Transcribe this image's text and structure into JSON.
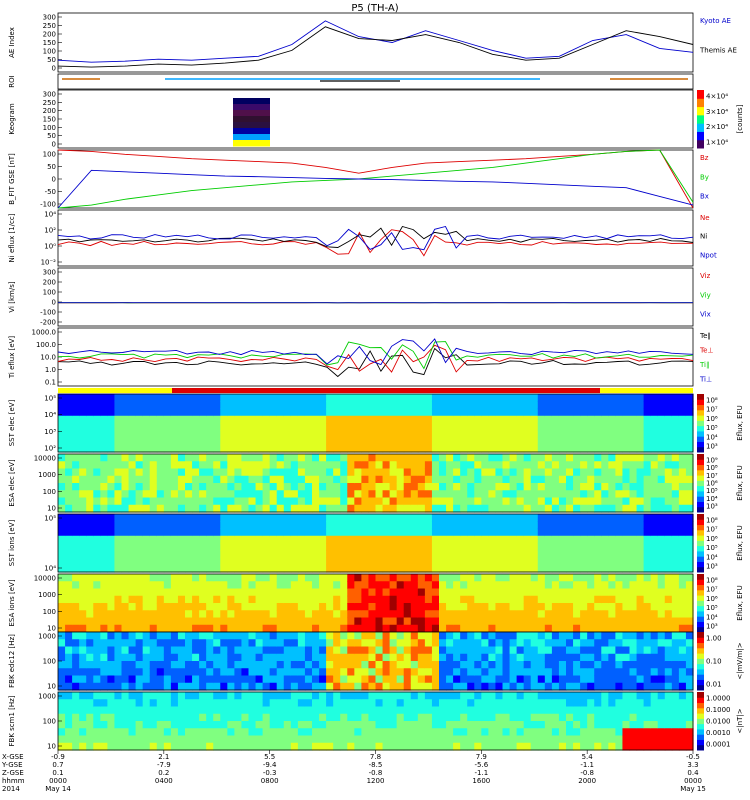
{
  "chart_data": {
    "type": "line",
    "title": "P5 (TH-A)",
    "time_range": [
      "2014 May 14 0000",
      "2014 May 15 0000"
    ],
    "panels": [
      {
        "id": "ae",
        "ylabel": "AE Index",
        "ylim": [
          0,
          300
        ],
        "yticks": [
          "300",
          "250",
          "200",
          "150",
          "100",
          "50",
          "0"
        ],
        "series": [
          {
            "name": "Kyoto AE",
            "color": "#0000cc",
            "values": [
              60,
              50,
              55,
              65,
              60,
              70,
              80,
              140,
              260,
              180,
              150,
              210,
              160,
              110,
              70,
              80,
              160,
              190,
              120,
              100
            ]
          },
          {
            "name": "Themis AE",
            "color": "#000000",
            "values": [
              30,
              25,
              30,
              40,
              35,
              45,
              60,
              110,
              230,
              170,
              160,
              190,
              150,
              90,
              60,
              70,
              140,
              210,
              180,
              140
            ]
          }
        ]
      },
      {
        "id": "roi",
        "ylabel": "ROI",
        "series": []
      },
      {
        "id": "keogram",
        "ylabel": "Keogram",
        "ylim": [
          0,
          300
        ],
        "yticks": [
          "300",
          "250",
          "200",
          "150",
          "100",
          "50",
          "0"
        ],
        "cbar_ticks": [
          "4×10⁴",
          "3×10⁴",
          "2×10⁴",
          "1×10⁴"
        ],
        "cbar_unit": "[counts]"
      },
      {
        "id": "bfit",
        "ylabel": "B_FIT GSE [nT]",
        "ylim": [
          -100,
          100
        ],
        "yticks": [
          "100",
          "50",
          "0",
          "-50",
          "-100"
        ],
        "series": [
          {
            "name": "Bz",
            "color": "#dd0000",
            "values": [
              100,
              95,
              85,
              78,
              70,
              65,
              60,
              55,
              40,
              20,
              40,
              55,
              60,
              65,
              70,
              78,
              85,
              95,
              100,
              -100
            ]
          },
          {
            "name": "By",
            "color": "#00cc00",
            "values": [
              -100,
              -90,
              -70,
              -55,
              -40,
              -30,
              -20,
              -10,
              -5,
              0,
              10,
              20,
              30,
              40,
              55,
              70,
              85,
              95,
              100,
              -80
            ]
          },
          {
            "name": "Bx",
            "color": "#0000cc",
            "values": [
              -100,
              30,
              25,
              20,
              15,
              10,
              8,
              5,
              2,
              0,
              -2,
              -5,
              -8,
              -10,
              -15,
              -20,
              -25,
              -30,
              -60,
              -90
            ]
          }
        ]
      },
      {
        "id": "ni",
        "ylabel": "Ni eflux [1/cc]",
        "ylog": true,
        "yticks": [
          "10⁴",
          "10²",
          "10⁰",
          "10⁻²"
        ],
        "series": [
          {
            "name": "Ne",
            "color": "#dd0000"
          },
          {
            "name": "Ni",
            "color": "#000000"
          },
          {
            "name": "Npot",
            "color": "#0000cc"
          }
        ]
      },
      {
        "id": "vi",
        "ylabel": "Vi [km/s]",
        "ylim": [
          -200,
          300
        ],
        "yticks": [
          "300",
          "200",
          "100",
          "0",
          "-100",
          "-200"
        ],
        "series": [
          {
            "name": "Viz",
            "color": "#dd0000"
          },
          {
            "name": "Viy",
            "color": "#00cc00"
          },
          {
            "name": "Vix",
            "color": "#0000cc"
          }
        ]
      },
      {
        "id": "ti",
        "ylabel": "Ti eflux [eV]",
        "ylog": true,
        "yticks": [
          "1000.0",
          "100.0",
          "10.0",
          "1.0",
          "0.1"
        ],
        "series": [
          {
            "name": "Te∥",
            "color": "#000000"
          },
          {
            "name": "Te⊥",
            "color": "#dd0000"
          },
          {
            "name": "Ti∥",
            "color": "#00cc00"
          },
          {
            "name": "Ti⊥",
            "color": "#0000cc"
          }
        ]
      },
      {
        "id": "sst_e",
        "ylabel": "SST elec [eV]",
        "yticks": [
          "10⁵",
          "10⁴",
          "10³",
          "10²"
        ],
        "cbar_ticks": [
          "10⁸",
          "10⁷",
          "10⁶",
          "10⁵",
          "10⁴",
          "10³"
        ],
        "cbar_unit": "Eflux, EFU"
      },
      {
        "id": "esa_e",
        "ylabel": "ESA elec [eV]",
        "yticks": [
          "10000",
          "1000",
          "100",
          "10"
        ],
        "cbar_ticks": [
          "10⁹",
          "10⁸",
          "10⁷",
          "10⁶",
          "10⁵",
          "10⁴",
          "10³"
        ],
        "cbar_unit": "Eflux, EFU"
      },
      {
        "id": "sst_i",
        "ylabel": "SST ions [eV]",
        "yticks": [
          "10⁵",
          "10⁴"
        ],
        "cbar_ticks": [
          "10⁸",
          "10⁷",
          "10⁶",
          "10⁵",
          "10⁴",
          "10³"
        ],
        "cbar_unit": "Eflux, EFU"
      },
      {
        "id": "esa_i",
        "ylabel": "ESA ions [eV]",
        "yticks": [
          "10000",
          "1000",
          "100",
          "10"
        ],
        "cbar_ticks": [
          "10⁸",
          "10⁷",
          "10⁶",
          "10⁵",
          "10⁴",
          "10³"
        ],
        "cbar_unit": "Eflux, EFU"
      },
      {
        "id": "fbk_e",
        "ylabel": "FBK edc12 [Hz]",
        "yticks": [
          "1000",
          "100",
          "10"
        ],
        "cbar_ticks": [
          "1.00",
          "0.10",
          "0.01"
        ],
        "cbar_unit": "<|mV/m|>"
      },
      {
        "id": "fbk_b",
        "ylabel": "FBK scm1 [Hz]",
        "yticks": [
          "1000",
          "100",
          "10"
        ],
        "cbar_ticks": [
          "1.0000",
          "0.1000",
          "0.0100",
          "0.0010",
          "0.0001"
        ],
        "cbar_unit": "<|nT|>"
      }
    ],
    "x_axis": {
      "row_labels": [
        "X-GSE",
        "Y-GSE",
        "Z-GSE",
        "hhmm",
        "2014"
      ],
      "columns": [
        {
          "vals": [
            "-0.9",
            "0.7",
            "0.1",
            "0000",
            "May 14"
          ]
        },
        {
          "vals": [
            "2.1",
            "-7.9",
            "0.2",
            "0400",
            ""
          ]
        },
        {
          "vals": [
            "5.5",
            "-9.4",
            "-0.3",
            "0800",
            ""
          ]
        },
        {
          "vals": [
            "7.8",
            "-8.5",
            "-0.8",
            "1200",
            ""
          ]
        },
        {
          "vals": [
            "7.9",
            "-5.6",
            "-1.1",
            "1600",
            ""
          ]
        },
        {
          "vals": [
            "5.4",
            "-1.1",
            "-0.8",
            "2000",
            ""
          ]
        },
        {
          "vals": [
            "-0.5",
            "3.3",
            "0.4",
            "0000",
            "May 15"
          ]
        }
      ]
    }
  }
}
